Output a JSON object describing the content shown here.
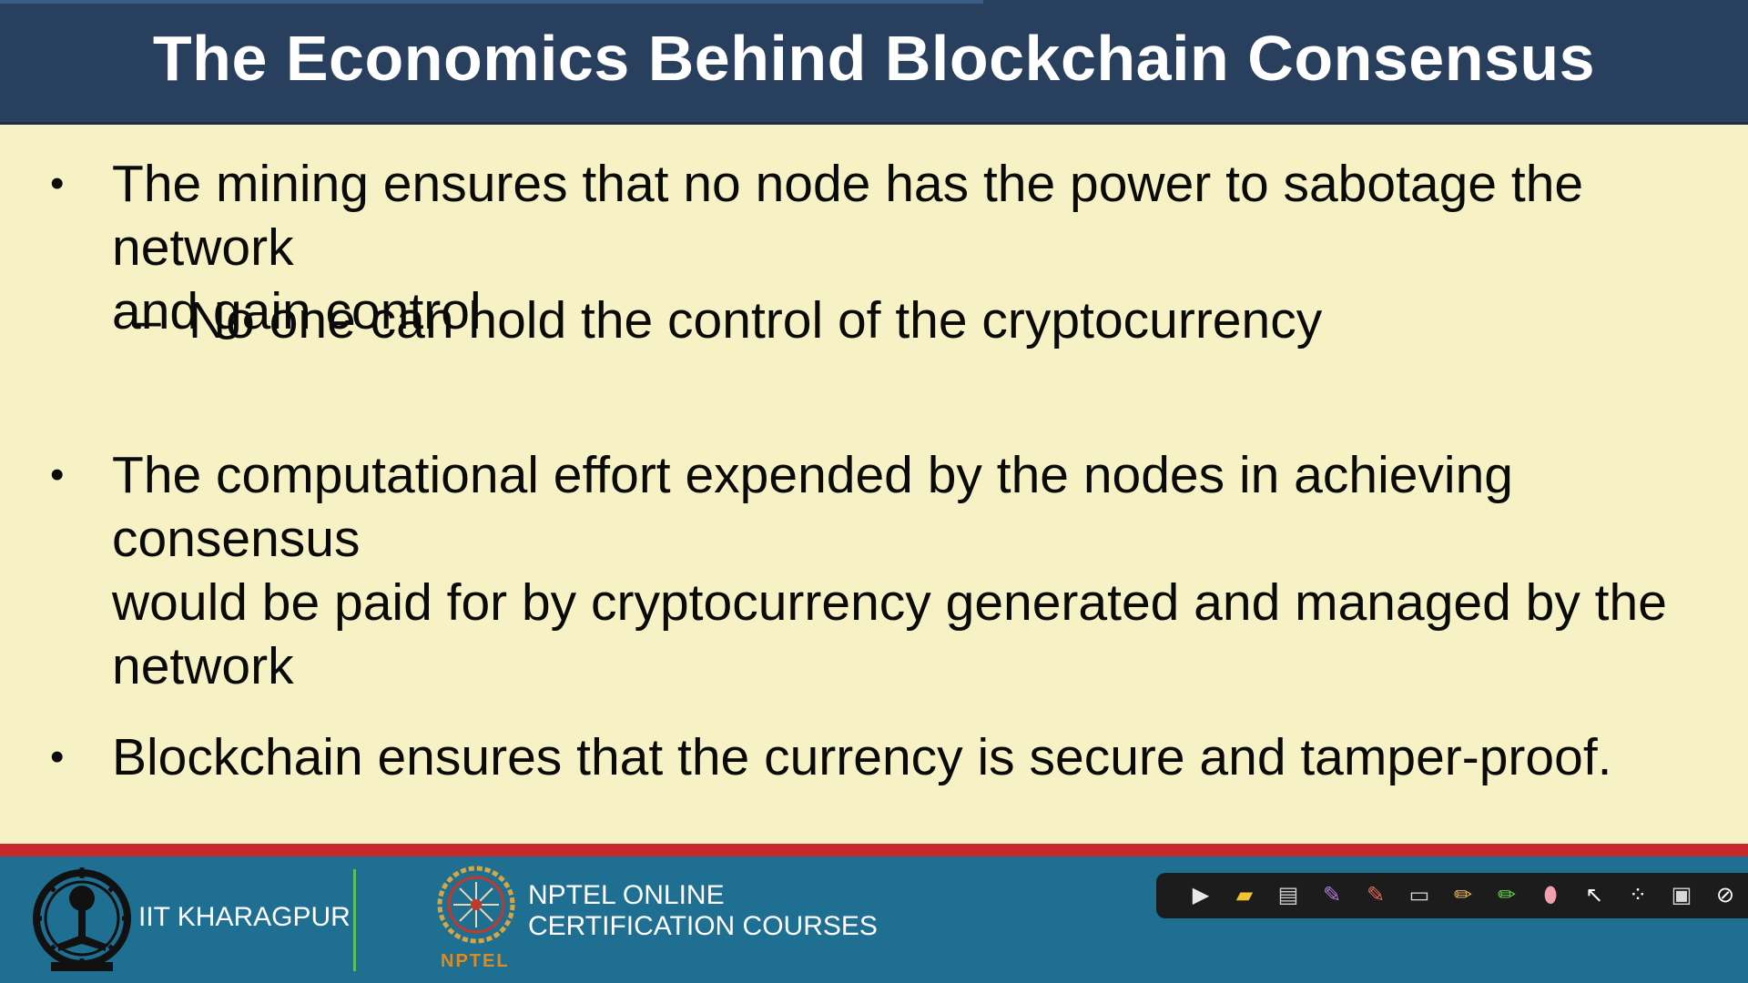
{
  "slide": {
    "title": "The Economics Behind Blockchain Consensus",
    "bullets": [
      {
        "line1": "The mining ensures that no node has the power to sabotage the network",
        "line2": "and gain control",
        "sub": "No one can hold the control of the cryptocurrency"
      },
      {
        "line1": "The computational effort expended by the nodes in achieving consensus",
        "line2": "would be paid for by cryptocurrency generated and managed by the",
        "line3": "network"
      },
      {
        "line1": "Blockchain ensures that the currency is secure and tamper-proof."
      }
    ],
    "bullet_symbol": "•",
    "sub_symbol": "–"
  },
  "footer": {
    "iit_name": "IIT KHARAGPUR",
    "nptel_line1": "NPTEL ONLINE",
    "nptel_line2": "CERTIFICATION COURSES",
    "nptel_label": "NPTEL"
  },
  "toolbar": {
    "tools": [
      {
        "icon": "next-slide-icon",
        "glyph": "▶"
      },
      {
        "icon": "folder-icon",
        "glyph": "▰"
      },
      {
        "icon": "save-icon",
        "glyph": "▤"
      },
      {
        "icon": "pen-purple-icon",
        "glyph": "✎"
      },
      {
        "icon": "pen-red-icon",
        "glyph": "✎"
      },
      {
        "icon": "screen-icon",
        "glyph": "▭"
      },
      {
        "icon": "pencil-icon",
        "glyph": "✏"
      },
      {
        "icon": "highlighter-icon",
        "glyph": "✏"
      },
      {
        "icon": "eraser-icon",
        "glyph": "⬮"
      },
      {
        "icon": "pointer-icon",
        "glyph": "↖"
      },
      {
        "icon": "laser-icon",
        "glyph": "⁘"
      },
      {
        "icon": "board-icon",
        "glyph": "▣"
      },
      {
        "icon": "close-icon",
        "glyph": "⊘"
      }
    ],
    "colors": [
      "#e8e8e8",
      "#f2c230",
      "#cfcfcf",
      "#b07ad8",
      "#e06b5a",
      "#d8d8d8",
      "#e9b35a",
      "#5fd34a",
      "#f2a0b0",
      "#ffffff",
      "#ffffff",
      "#d8d8d8",
      "#ffffff"
    ]
  }
}
